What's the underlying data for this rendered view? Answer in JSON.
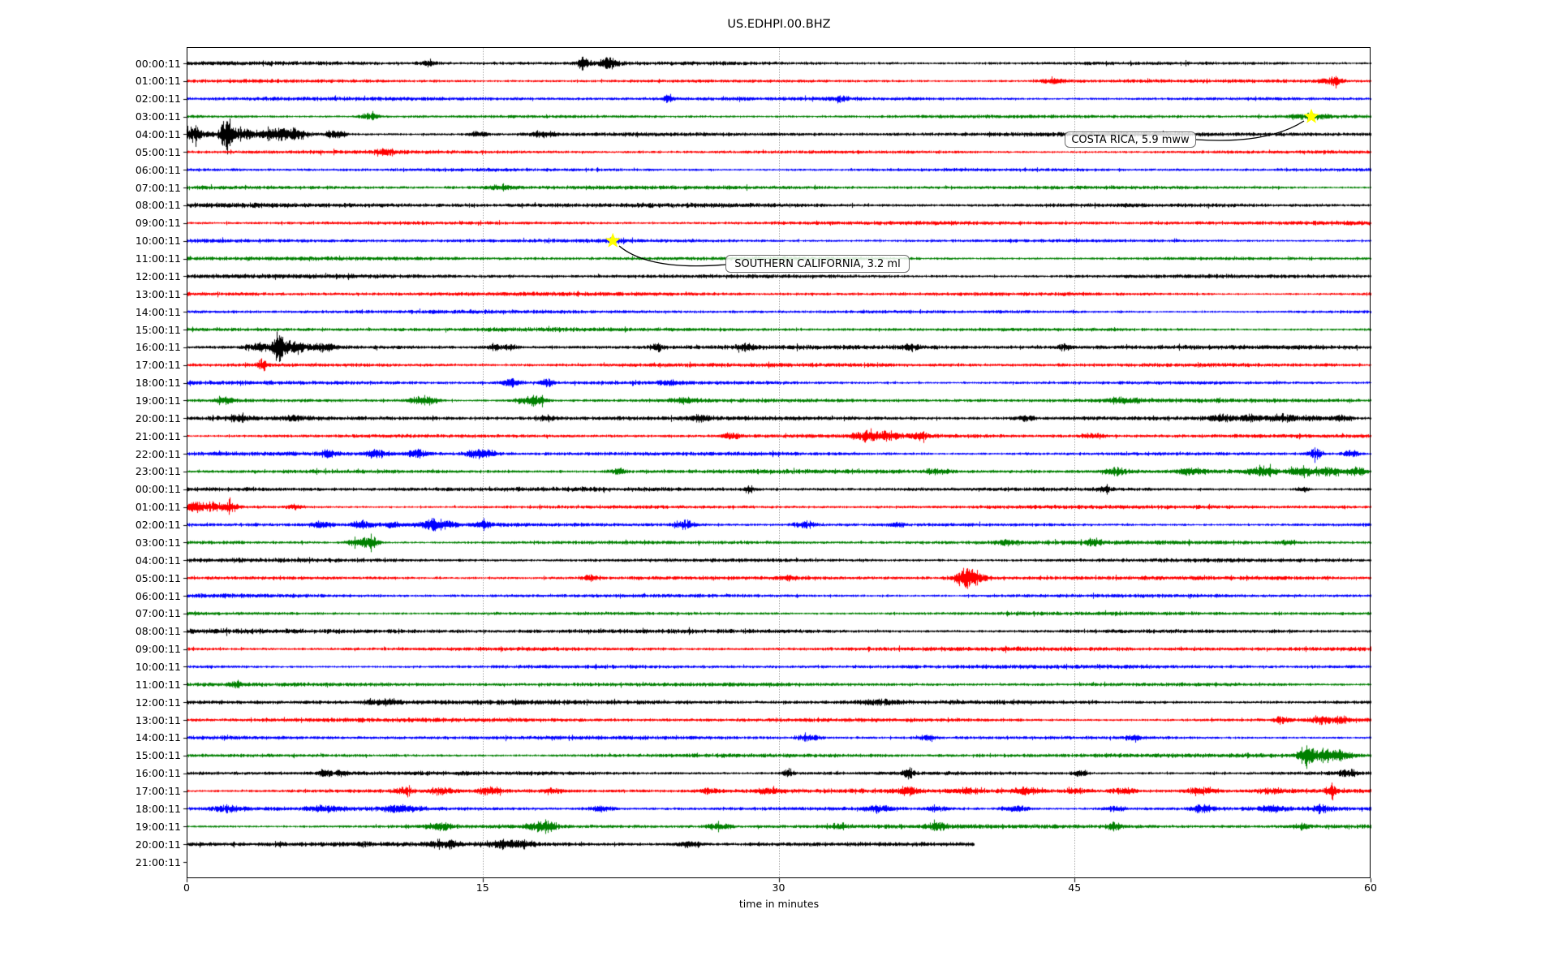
{
  "chart_data": {
    "type": "line",
    "subtype": "helicorder-dayplot",
    "title": "US.EDHPI.00.BHZ",
    "xlabel": "time in minutes",
    "xlim": [
      0,
      60
    ],
    "xticks": [
      0,
      15,
      30,
      45,
      60
    ],
    "xtick_labels": [
      "0",
      "15",
      "30",
      "45",
      "60"
    ],
    "grid": "vertical-dotted-at-15-30-45",
    "legend_position": "none",
    "trace_colors": [
      "#000000",
      "#ff0000",
      "#0000ff",
      "#008000"
    ],
    "grid_color": "#b0b0b0",
    "star_color": "#ffff00",
    "background_color": "#ffffff",
    "rows": [
      {
        "label": "00:00:11",
        "amp": 2.6,
        "events": [
          [
            12.3,
            3,
            0.3
          ],
          [
            20.1,
            7,
            0.25
          ],
          [
            21.4,
            8,
            0.3
          ]
        ]
      },
      {
        "label": "01:00:11",
        "amp": 2.4,
        "events": [
          [
            44,
            3,
            0.5
          ],
          [
            58.0,
            5,
            0.35
          ]
        ]
      },
      {
        "label": "02:00:11",
        "amp": 2.4,
        "events": [
          [
            24.4,
            6,
            0.15
          ],
          [
            33,
            3,
            0.3
          ]
        ]
      },
      {
        "label": "03:00:11",
        "amp": 2.4,
        "events": [
          [
            9.3,
            6,
            0.3
          ],
          [
            57.0,
            3,
            0.8
          ]
        ]
      },
      {
        "label": "04:00:11",
        "amp": 2.8,
        "events": [
          [
            0.3,
            8,
            0.4
          ],
          [
            2.0,
            22,
            0.18
          ],
          [
            2.7,
            6,
            0.8
          ],
          [
            4.6,
            7,
            0.5
          ],
          [
            5.6,
            7,
            0.4
          ],
          [
            7.5,
            5,
            0.3
          ],
          [
            14.8,
            4,
            0.3
          ],
          [
            18,
            3,
            0.5
          ]
        ]
      },
      {
        "label": "05:00:11",
        "amp": 2.4,
        "events": [
          [
            10,
            3,
            0.4
          ]
        ]
      },
      {
        "label": "06:00:11",
        "amp": 2.4,
        "events": []
      },
      {
        "label": "07:00:11",
        "amp": 2.4,
        "events": [
          [
            16,
            3,
            0.5
          ]
        ]
      },
      {
        "label": "08:00:11",
        "amp": 3.0,
        "events": []
      },
      {
        "label": "09:00:11",
        "amp": 2.6,
        "events": []
      },
      {
        "label": "10:00:11",
        "amp": 2.4,
        "events": [
          [
            21.6,
            3,
            0.3
          ]
        ]
      },
      {
        "label": "11:00:11",
        "amp": 2.4,
        "events": []
      },
      {
        "label": "12:00:11",
        "amp": 2.8,
        "events": []
      },
      {
        "label": "13:00:11",
        "amp": 2.5,
        "events": []
      },
      {
        "label": "14:00:11",
        "amp": 2.4,
        "events": []
      },
      {
        "label": "15:00:11",
        "amp": 2.5,
        "events": []
      },
      {
        "label": "16:00:11",
        "amp": 2.8,
        "events": [
          [
            3.6,
            5,
            0.4
          ],
          [
            4.65,
            24,
            0.15
          ],
          [
            5.3,
            8,
            0.6
          ],
          [
            7,
            4,
            0.4
          ],
          [
            15.6,
            4,
            0.25
          ],
          [
            16.5,
            4,
            0.25
          ],
          [
            23.8,
            5,
            0.2
          ],
          [
            28.4,
            4,
            0.3
          ],
          [
            36.7,
            3,
            0.4
          ],
          [
            44.5,
            3,
            0.3
          ]
        ]
      },
      {
        "label": "17:00:11",
        "amp": 2.5,
        "events": [
          [
            3.8,
            8,
            0.15
          ]
        ]
      },
      {
        "label": "18:00:11",
        "amp": 2.5,
        "events": [
          [
            16.4,
            5,
            0.3
          ],
          [
            18.2,
            5,
            0.25
          ],
          [
            24.5,
            3,
            0.4
          ]
        ]
      },
      {
        "label": "19:00:11",
        "amp": 2.5,
        "events": [
          [
            2,
            3,
            0.4
          ],
          [
            11.7,
            4,
            0.4
          ],
          [
            12.4,
            4,
            0.3
          ],
          [
            17.3,
            5,
            0.5
          ],
          [
            17.9,
            4,
            0.3
          ],
          [
            25.2,
            3,
            0.5
          ],
          [
            47.5,
            3,
            0.6
          ]
        ]
      },
      {
        "label": "20:00:11",
        "amp": 2.7,
        "events": [
          [
            2.7,
            5,
            0.3
          ],
          [
            5.5,
            3,
            0.4
          ],
          [
            18.3,
            4,
            0.3
          ],
          [
            26,
            4,
            0.25
          ],
          [
            42.5,
            3,
            0.4
          ],
          [
            52.5,
            4,
            0.5
          ],
          [
            54,
            4,
            0.4
          ],
          [
            55.5,
            5,
            0.5
          ],
          [
            57,
            4,
            0.4
          ],
          [
            58.5,
            4,
            0.4
          ]
        ]
      },
      {
        "label": "21:00:11",
        "amp": 2.5,
        "events": [
          [
            27.6,
            4,
            0.3
          ],
          [
            34.5,
            6,
            0.4
          ],
          [
            35.5,
            4,
            0.5
          ],
          [
            37.2,
            5,
            0.3
          ],
          [
            46,
            3,
            0.4
          ]
        ]
      },
      {
        "label": "22:00:11",
        "amp": 2.5,
        "events": [
          [
            7.2,
            4,
            0.3
          ],
          [
            9.6,
            5,
            0.3
          ],
          [
            11.7,
            5,
            0.4
          ],
          [
            14.6,
            5,
            0.4
          ],
          [
            15.3,
            4,
            0.3
          ],
          [
            57.2,
            6,
            0.25
          ],
          [
            59,
            4,
            0.3
          ]
        ]
      },
      {
        "label": "23:00:11",
        "amp": 2.6,
        "events": [
          [
            21.8,
            4,
            0.25
          ],
          [
            38,
            3,
            0.4
          ],
          [
            47,
            4,
            0.5
          ],
          [
            51,
            4,
            0.5
          ],
          [
            54.5,
            5,
            0.5
          ],
          [
            56.5,
            6,
            0.4
          ],
          [
            58,
            5,
            0.5
          ],
          [
            59.3,
            5,
            0.3
          ]
        ]
      },
      {
        "label": "00:00:11",
        "amp": 2.7,
        "events": [
          [
            28.5,
            7,
            0.15
          ],
          [
            46.5,
            3,
            0.3
          ],
          [
            56.5,
            4,
            0.2
          ]
        ]
      },
      {
        "label": "01:00:11",
        "amp": 2.5,
        "events": [
          [
            0.4,
            7,
            0.3
          ],
          [
            1.3,
            6,
            0.3
          ],
          [
            2.2,
            6,
            0.25
          ],
          [
            5.5,
            3,
            0.3
          ]
        ]
      },
      {
        "label": "02:00:11",
        "amp": 2.5,
        "events": [
          [
            6.8,
            4,
            0.4
          ],
          [
            8.9,
            5,
            0.4
          ],
          [
            10.4,
            4,
            0.3
          ],
          [
            12.3,
            6,
            0.4
          ],
          [
            13,
            4,
            0.4
          ],
          [
            15,
            4,
            0.3
          ],
          [
            25.3,
            5,
            0.4
          ],
          [
            31.3,
            4,
            0.4
          ],
          [
            36,
            3,
            0.3
          ]
        ]
      },
      {
        "label": "03:00:11",
        "amp": 2.5,
        "events": [
          [
            8.6,
            5,
            0.4
          ],
          [
            9.3,
            7,
            0.3
          ],
          [
            41.5,
            3,
            0.4
          ],
          [
            46,
            3,
            0.3
          ],
          [
            55.8,
            3,
            0.3
          ]
        ]
      },
      {
        "label": "04:00:11",
        "amp": 2.7,
        "events": []
      },
      {
        "label": "05:00:11",
        "amp": 2.5,
        "events": [
          [
            20.4,
            4,
            0.25
          ],
          [
            30.5,
            3,
            0.3
          ],
          [
            39.4,
            12,
            0.35
          ],
          [
            40,
            6,
            0.4
          ]
        ]
      },
      {
        "label": "06:00:11",
        "amp": 2.6,
        "events": []
      },
      {
        "label": "07:00:11",
        "amp": 2.5,
        "events": []
      },
      {
        "label": "08:00:11",
        "amp": 2.9,
        "events": []
      },
      {
        "label": "09:00:11",
        "amp": 2.8,
        "events": []
      },
      {
        "label": "10:00:11",
        "amp": 2.5,
        "events": []
      },
      {
        "label": "11:00:11",
        "amp": 2.5,
        "events": [
          [
            2.5,
            5,
            0.15
          ]
        ]
      },
      {
        "label": "12:00:11",
        "amp": 2.9,
        "events": [
          [
            10,
            3,
            0.6
          ],
          [
            35,
            3,
            0.8
          ]
        ]
      },
      {
        "label": "13:00:11",
        "amp": 2.6,
        "events": [
          [
            55.5,
            4,
            0.3
          ],
          [
            57.5,
            6,
            0.3
          ],
          [
            58.5,
            4,
            0.3
          ]
        ]
      },
      {
        "label": "14:00:11",
        "amp": 2.5,
        "events": [
          [
            31.5,
            4,
            0.4
          ],
          [
            37.5,
            4,
            0.3
          ],
          [
            48,
            3,
            0.3
          ]
        ]
      },
      {
        "label": "15:00:11",
        "amp": 2.6,
        "events": [
          [
            56.7,
            13,
            0.25
          ],
          [
            57.5,
            7,
            0.5
          ],
          [
            58.5,
            5,
            0.4
          ]
        ]
      },
      {
        "label": "16:00:11",
        "amp": 2.8,
        "events": [
          [
            7,
            5,
            0.2
          ],
          [
            7.8,
            4,
            0.2
          ],
          [
            30.5,
            5,
            0.2
          ],
          [
            36.6,
            6,
            0.2
          ],
          [
            45.3,
            4,
            0.25
          ],
          [
            58.8,
            4,
            0.3
          ]
        ]
      },
      {
        "label": "17:00:11",
        "amp": 2.7,
        "events": [
          [
            11,
            4,
            0.3
          ],
          [
            13,
            4,
            0.4
          ],
          [
            15.4,
            5,
            0.4
          ],
          [
            18.5,
            3,
            0.4
          ],
          [
            26.5,
            3,
            0.4
          ],
          [
            29.5,
            3,
            0.5
          ],
          [
            36.5,
            5,
            0.3
          ],
          [
            39.5,
            3,
            0.4
          ],
          [
            42.5,
            4,
            0.5
          ],
          [
            45,
            3,
            0.4
          ],
          [
            47.5,
            4,
            0.4
          ],
          [
            51.5,
            4,
            0.5
          ],
          [
            55,
            3,
            0.4
          ],
          [
            58,
            6,
            0.2
          ]
        ]
      },
      {
        "label": "18:00:11",
        "amp": 2.7,
        "events": [
          [
            2,
            4,
            0.5
          ],
          [
            7,
            3,
            0.5
          ],
          [
            10.8,
            4,
            0.6
          ],
          [
            21,
            3,
            0.5
          ],
          [
            35,
            4,
            0.4
          ],
          [
            38,
            3,
            0.4
          ],
          [
            42,
            4,
            0.5
          ],
          [
            47,
            3,
            0.4
          ],
          [
            51.5,
            5,
            0.4
          ],
          [
            55,
            4,
            0.4
          ],
          [
            57.5,
            5,
            0.3
          ]
        ]
      },
      {
        "label": "19:00:11",
        "amp": 2.6,
        "events": [
          [
            12.8,
            5,
            0.4
          ],
          [
            17.8,
            6,
            0.4
          ],
          [
            18.4,
            4,
            0.3
          ],
          [
            27,
            4,
            0.4
          ],
          [
            33,
            3,
            0.4
          ],
          [
            38,
            4,
            0.4
          ],
          [
            47,
            5,
            0.25
          ],
          [
            56.5,
            3,
            0.3
          ]
        ]
      },
      {
        "label": "20:00:11",
        "amp": 3.2,
        "end_minute": 39.9,
        "events": [
          [
            13,
            5,
            0.5
          ],
          [
            16,
            5,
            0.4
          ],
          [
            17,
            4,
            0.4
          ],
          [
            25.5,
            3,
            0.5
          ]
        ]
      },
      {
        "label": "21:00:11",
        "amp": 0,
        "empty": true,
        "events": []
      }
    ],
    "annotations": [
      {
        "text": "COSTA RICA, 5.9 mww",
        "star_row": 3,
        "star_minute": 57.0
      },
      {
        "text": "SOUTHERN CALIFORNIA, 3.2 ml",
        "star_row": 10,
        "star_minute": 21.6
      }
    ]
  }
}
